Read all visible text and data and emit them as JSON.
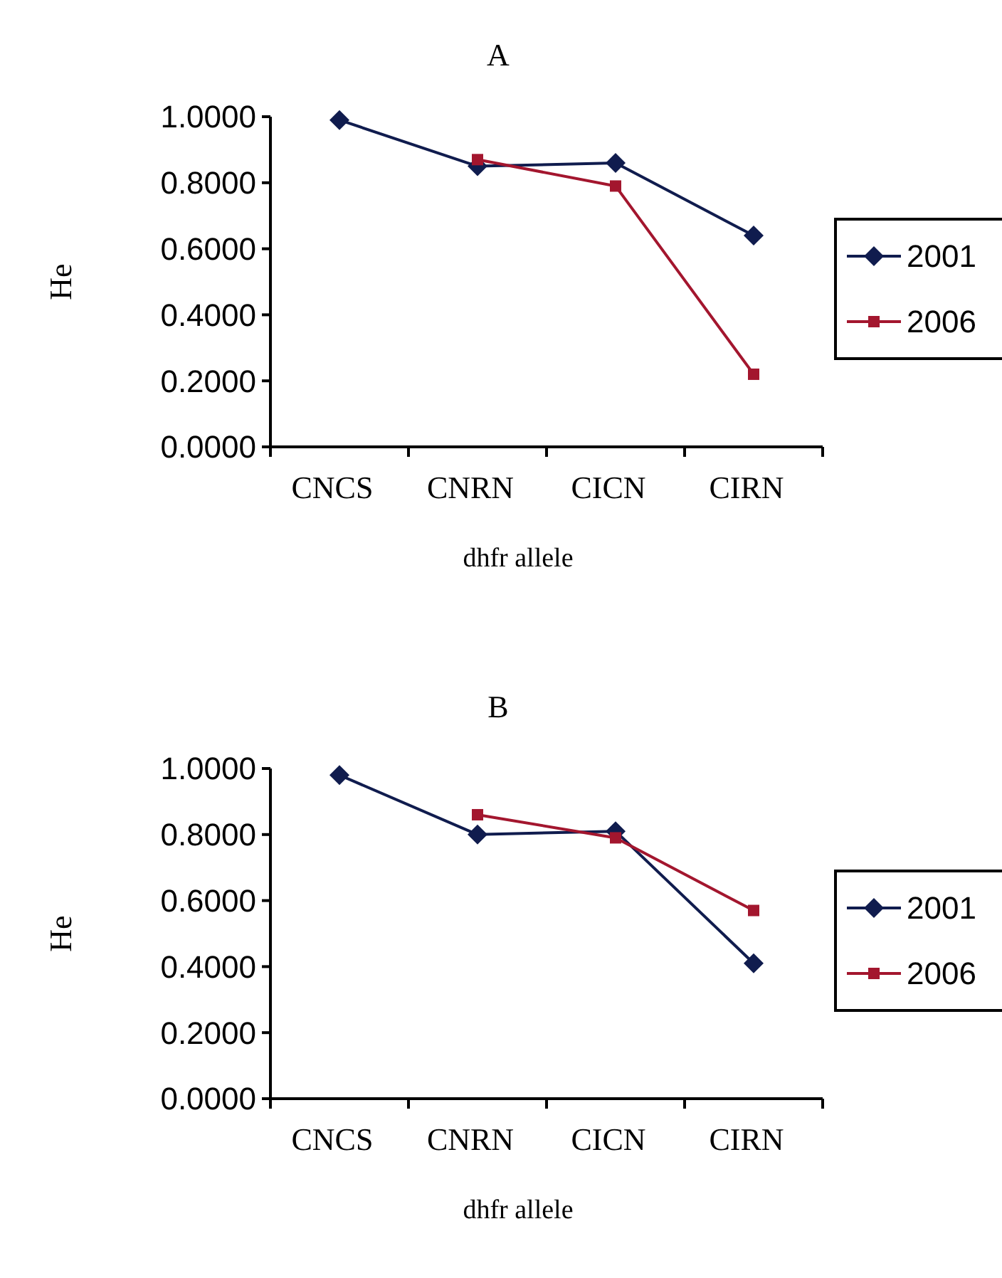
{
  "chart_data": [
    {
      "type": "line",
      "title": "A",
      "xlabel": "dhfr allele",
      "ylabel": "He",
      "categories": [
        "CNCS",
        "CNRN",
        "CICN",
        "CIRN"
      ],
      "ylim": [
        0,
        1
      ],
      "yticks": [
        {
          "value": 0,
          "label": "0.0000"
        },
        {
          "value": 0.2,
          "label": "0.2000"
        },
        {
          "value": 0.4,
          "label": "0.4000"
        },
        {
          "value": 0.6,
          "label": "0.6000"
        },
        {
          "value": 0.8,
          "label": "0.8000"
        },
        {
          "value": 1,
          "label": "1.0000"
        }
      ],
      "legend": "right",
      "series": [
        {
          "name": "2001",
          "color": "#101c4e",
          "marker": "diamond",
          "values": [
            0.99,
            0.85,
            0.86,
            0.64
          ]
        },
        {
          "name": "2006",
          "color": "#a3162e",
          "marker": "square",
          "values": [
            null,
            0.87,
            0.79,
            0.22
          ]
        }
      ]
    },
    {
      "type": "line",
      "title": "B",
      "xlabel": "dhfr allele",
      "ylabel": "He",
      "categories": [
        "CNCS",
        "CNRN",
        "CICN",
        "CIRN"
      ],
      "ylim": [
        0,
        1
      ],
      "yticks": [
        {
          "value": 0,
          "label": "0.0000"
        },
        {
          "value": 0.2,
          "label": "0.2000"
        },
        {
          "value": 0.4,
          "label": "0.4000"
        },
        {
          "value": 0.6,
          "label": "0.6000"
        },
        {
          "value": 0.8,
          "label": "0.8000"
        },
        {
          "value": 1,
          "label": "1.0000"
        }
      ],
      "legend": "right",
      "series": [
        {
          "name": "2001",
          "color": "#101c4e",
          "marker": "diamond",
          "values": [
            0.98,
            0.8,
            0.81,
            0.41
          ]
        },
        {
          "name": "2006",
          "color": "#a3162e",
          "marker": "square",
          "values": [
            null,
            0.86,
            0.79,
            0.57
          ]
        }
      ]
    }
  ]
}
